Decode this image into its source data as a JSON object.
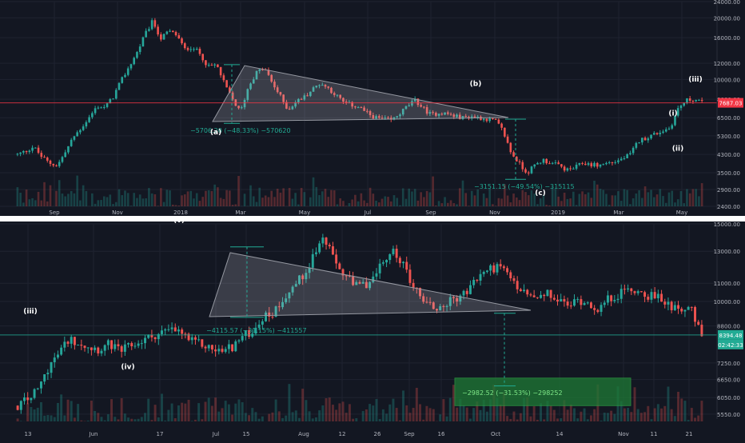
{
  "chart_data": [
    {
      "type": "candlestick",
      "name": "top-panel",
      "y_scale": "log",
      "ylim": [
        2400,
        24000
      ],
      "y_ticks": [
        "24000.00",
        "20000.00",
        "16000.00",
        "12000.00",
        "10000.00",
        "8000.00",
        "6500.00",
        "5300.00",
        "4300.00",
        "3500.00",
        "2900.00",
        "2400.00"
      ],
      "x_ticks": [
        "Sep",
        "Nov",
        "2018",
        "Mar",
        "May",
        "Jul",
        "Sep",
        "Nov",
        "2019",
        "Mar",
        "May"
      ],
      "price_line": {
        "value": 7687.03,
        "label": "7687.03",
        "color": "#f23645"
      },
      "close_series": [
        4300,
        4450,
        4700,
        4200,
        3900,
        3800,
        4400,
        5200,
        5800,
        6500,
        7400,
        7300,
        8200,
        9800,
        11500,
        13500,
        16500,
        19300,
        15800,
        17200,
        16500,
        14000,
        14500,
        13200,
        11500,
        11800,
        9500,
        8000,
        6900,
        9200,
        10800,
        11400,
        9600,
        8300,
        7100,
        7800,
        8200,
        8900,
        9600,
        9100,
        8400,
        7700,
        7500,
        7300,
        6800,
        6500,
        6400,
        6300,
        6800,
        7400,
        7900,
        7200,
        6700,
        6900,
        6800,
        6600,
        6500,
        6600,
        6500,
        6400,
        6300,
        5600,
        4400,
        3900,
        3500,
        3800,
        4050,
        3900,
        3800,
        3600,
        3700,
        3900,
        3850,
        3800,
        3900,
        3950,
        4100,
        4300,
        5000,
        5200,
        5400,
        5600,
        5800,
        7200,
        7900,
        8000,
        7700
      ],
      "annotations": [
        {
          "text": "(a)",
          "price": 6000
        },
        {
          "text": "(b)",
          "price": 8200
        },
        {
          "text": "(c)",
          "price": 3150
        },
        {
          "text": "(i)",
          "price": 6100
        },
        {
          "text": "(ii)",
          "price": 5000
        },
        {
          "text": "(iii)",
          "price": 8600
        }
      ],
      "measurements": [
        {
          "text": "−5706.20 (−48.33%) −570620",
          "color": "#22ab94"
        },
        {
          "text": "−3151.15 (−49.54%) −315115",
          "color": "#22ab94"
        }
      ],
      "triangle": {
        "color": "#787b86"
      }
    },
    {
      "type": "candlestick",
      "name": "bottom-panel",
      "y_scale": "log",
      "ylim": [
        5500,
        15000
      ],
      "y_ticks": [
        "15000.00",
        "13000.00",
        "11000.00",
        "10000.00",
        "8800.00",
        "7250.00",
        "6650.00",
        "6050.00",
        "5550.00"
      ],
      "x_ticks": [
        "13",
        "Jun",
        "17",
        "Jul",
        "15",
        "Aug",
        "12",
        "26",
        "Sep",
        "16",
        "Oct",
        "14",
        "Nov",
        "11",
        "21"
      ],
      "price_line": {
        "value": 8394.48,
        "label": "8394.48",
        "countdown": "02:42:33",
        "color": "#22ab94"
      },
      "close_series": [
        5800,
        6000,
        6300,
        7100,
        7600,
        8200,
        8100,
        7900,
        7800,
        8000,
        7700,
        7900,
        8100,
        8300,
        8500,
        8600,
        8500,
        8100,
        8000,
        7800,
        7700,
        7900,
        8300,
        8600,
        9200,
        9400,
        10200,
        10800,
        11500,
        12800,
        14000,
        12300,
        11500,
        10800,
        10900,
        11400,
        12500,
        13000,
        11800,
        10600,
        10000,
        9600,
        9900,
        10200,
        10500,
        11300,
        11800,
        12000,
        11500,
        10700,
        10300,
        10100,
        10400,
        10000,
        9800,
        10100,
        9900,
        9600,
        10200,
        10400,
        10700,
        10500,
        10300,
        10100,
        9800,
        9700,
        9500,
        8300
      ],
      "annotations": [
        {
          "text": "(v)",
          "price": 14500
        },
        {
          "text": "(iii)",
          "price": 9000
        },
        {
          "text": "(iv)",
          "price": 7450
        }
      ],
      "measurements": [
        {
          "text": "−4115.57 (−31.15%) −411557",
          "color": "#22ab94"
        },
        {
          "text": "−2982.52 (−31.53%) −298252",
          "color": "#22ab94"
        }
      ],
      "target_zone": {
        "low": 5800,
        "high": 6700,
        "color": "#1e7a35"
      }
    }
  ],
  "colors": {
    "background": "#131722",
    "up": "#26a69a",
    "down": "#ef5350",
    "grid": "#1f2330",
    "axis_text": "#b2b5be",
    "separator": "#ffffff"
  }
}
